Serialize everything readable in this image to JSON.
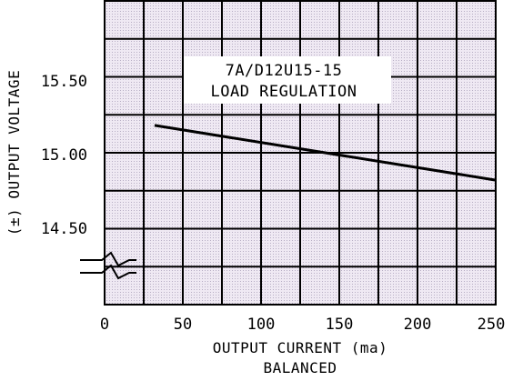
{
  "chart_data": {
    "type": "line",
    "annotation": [
      "7A/D12U15-15",
      "LOAD REGULATION"
    ],
    "xlabel": "OUTPUT CURRENT (ma)",
    "xlabel_sub": "BALANCED",
    "ylabel": "(±) OUTPUT VOLTAGE",
    "x_ticks": [
      "0",
      "50",
      "100",
      "150",
      "200",
      "250"
    ],
    "y_ticks": [
      "15.50",
      "15.00",
      "14.50"
    ],
    "xlim": [
      0,
      250
    ],
    "ylim": [
      14.0,
      16.0
    ],
    "axis_break": true,
    "grid": true,
    "colors": {
      "grid_fill": "#e4dcec",
      "grid_line": "#000000",
      "series": "#000000"
    },
    "series": [
      {
        "x": [
          32,
          250
        ],
        "y": [
          15.18,
          14.82
        ]
      }
    ]
  }
}
